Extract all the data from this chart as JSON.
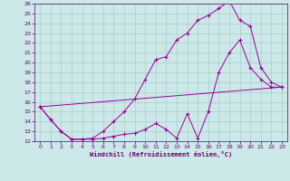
{
  "bg_color": "#cce8e8",
  "line_color": "#990099",
  "grid_color": "#aacccc",
  "xlabel": "Windchill (Refroidissement éolien,°C)",
  "xlabel_color": "#660066",
  "tick_color": "#660066",
  "xlim": [
    -0.5,
    23.5
  ],
  "ylim": [
    12,
    26
  ],
  "xticks": [
    0,
    1,
    2,
    3,
    4,
    5,
    6,
    7,
    8,
    9,
    10,
    11,
    12,
    13,
    14,
    15,
    16,
    17,
    18,
    19,
    20,
    21,
    22,
    23
  ],
  "yticks": [
    12,
    13,
    14,
    15,
    16,
    17,
    18,
    19,
    20,
    21,
    22,
    23,
    24,
    25,
    26
  ],
  "line1_x": [
    0,
    1,
    2,
    3,
    4,
    5,
    6,
    7,
    8,
    9,
    10,
    11,
    12,
    13,
    14,
    15,
    16,
    17,
    18,
    19,
    20,
    21,
    22,
    23
  ],
  "line1_y": [
    15.5,
    14.2,
    13.0,
    12.2,
    12.2,
    12.2,
    12.3,
    12.5,
    12.7,
    12.8,
    13.2,
    13.8,
    13.2,
    12.3,
    14.8,
    12.3,
    15.0,
    19.0,
    21.0,
    22.3,
    19.5,
    18.3,
    17.5,
    17.5
  ],
  "line2_x": [
    0,
    1,
    2,
    3,
    4,
    5,
    6,
    7,
    8,
    9,
    10,
    11,
    12,
    13,
    14,
    15,
    16,
    17,
    18,
    19,
    20,
    21,
    22,
    23
  ],
  "line2_y": [
    15.5,
    14.2,
    13.0,
    12.2,
    12.2,
    12.3,
    13.0,
    14.0,
    15.0,
    16.3,
    18.3,
    20.3,
    20.6,
    22.3,
    23.0,
    24.3,
    24.8,
    25.5,
    26.3,
    24.3,
    23.7,
    19.5,
    18.0,
    17.5
  ],
  "line3_x": [
    0,
    23
  ],
  "line3_y": [
    15.5,
    17.5
  ]
}
